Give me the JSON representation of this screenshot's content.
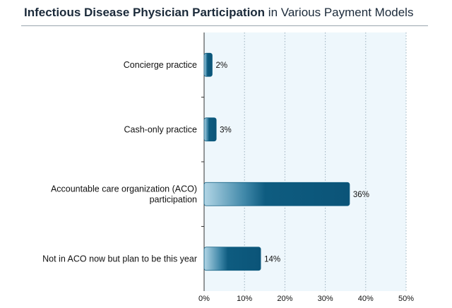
{
  "title": {
    "bold": "Infectious Disease Physician Participation",
    "rest": " in Various Payment Models"
  },
  "chart_data": {
    "type": "bar",
    "orientation": "horizontal",
    "categories": [
      "Concierge practice",
      "Cash-only practice",
      "Accountable care organization (ACO) participation",
      "Not in ACO now but plan to be this year"
    ],
    "values": [
      2,
      3,
      36,
      14
    ],
    "value_labels": [
      "2%",
      "3%",
      "36%",
      "14%"
    ],
    "xlim": [
      0,
      50
    ],
    "xticks": [
      0,
      10,
      20,
      30,
      40,
      50
    ],
    "xtick_labels": [
      "0%",
      "10%",
      "20%",
      "30%",
      "40%",
      "50%"
    ],
    "grid": "vertical dotted",
    "colors": {
      "bar_dark": "#0e5c80",
      "bar_light": "#a6cfe0",
      "plot_bg": "#eef7fc",
      "grid": "#9bb0bd"
    }
  }
}
